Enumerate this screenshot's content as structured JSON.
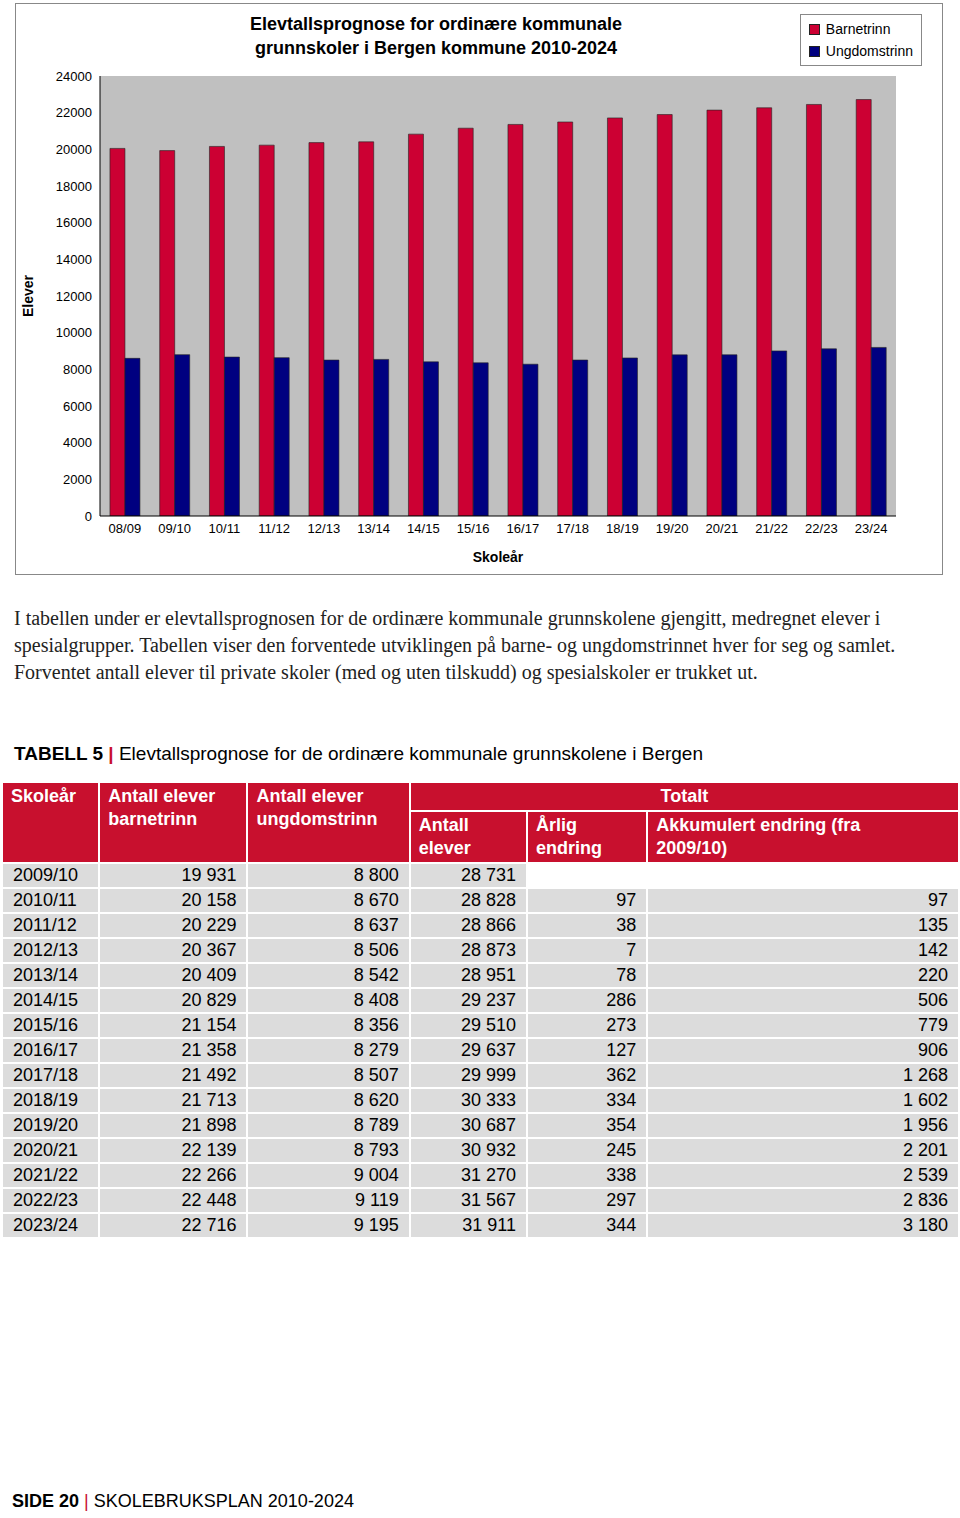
{
  "chart_data": {
    "type": "bar",
    "title": "Elevtallsprognose for ordinære kommunale grunnskoler i Bergen kommune 2010-2024",
    "y_label": "Elever",
    "x_label": "Skoleår",
    "categories": [
      "08/09",
      "09/10",
      "10/11",
      "11/12",
      "12/13",
      "13/14",
      "14/15",
      "15/16",
      "16/17",
      "17/18",
      "18/19",
      "19/20",
      "20/21",
      "21/22",
      "22/23",
      "23/24"
    ],
    "series": [
      {
        "name": "Barnetrinn",
        "color": "#cc0033",
        "values": [
          20050,
          19931,
          20158,
          20229,
          20367,
          20409,
          20829,
          21154,
          21358,
          21492,
          21713,
          21898,
          22139,
          22266,
          22448,
          22716
        ]
      },
      {
        "name": "Ungdomstrinn",
        "color": "#000080",
        "values": [
          8600,
          8800,
          8670,
          8637,
          8506,
          8542,
          8408,
          8356,
          8279,
          8507,
          8620,
          8789,
          8793,
          9004,
          9119,
          9195
        ]
      }
    ],
    "ylim": [
      0,
      24000
    ],
    "yticks": [
      0,
      2000,
      4000,
      6000,
      8000,
      10000,
      12000,
      14000,
      16000,
      18000,
      20000,
      22000,
      24000
    ],
    "grid": false,
    "legend": "upper right"
  },
  "text": "I tabellen under er elevtallsprognosen for de ordinære kommunale grunnskolene gjengitt, medregnet elever i spesialgrupper. Tabellen viser den forventede utviklingen på barne- og ungdomstrinnet hver for seg og samlet. Forventet antall elever til private skoler (med og uten tilskudd) og spesialskoler er trukket ut.",
  "table": {
    "label": "TABELL 5",
    "separator": "|",
    "title": "Elevtallsprognose for de ordinære kommunale grunnskolene i Bergen",
    "header": {
      "top": [
        "Skoleår",
        "Antall elever barnetrinn",
        "Antall elever ungdomstrinn",
        "Totalt"
      ],
      "sub": [
        "Antall elever",
        "Årlig endring",
        "Akkumulert endring (fra 2009/10)"
      ]
    },
    "rows": [
      [
        "2009/10",
        "19 931",
        "8 800",
        "28 731",
        null,
        null
      ],
      [
        "2010/11",
        "20 158",
        "8 670",
        "28 828",
        "97",
        "97"
      ],
      [
        "2011/12",
        "20 229",
        "8 637",
        "28 866",
        "38",
        "135"
      ],
      [
        "2012/13",
        "20 367",
        "8 506",
        "28 873",
        "7",
        "142"
      ],
      [
        "2013/14",
        "20 409",
        "8 542",
        "28 951",
        "78",
        "220"
      ],
      [
        "2014/15",
        "20 829",
        "8 408",
        "29 237",
        "286",
        "506"
      ],
      [
        "2015/16",
        "21 154",
        "8 356",
        "29 510",
        "273",
        "779"
      ],
      [
        "2016/17",
        "21 358",
        "8 279",
        "29 637",
        "127",
        "906"
      ],
      [
        "2017/18",
        "21 492",
        "8 507",
        "29 999",
        "362",
        "1 268"
      ],
      [
        "2018/19",
        "21 713",
        "8 620",
        "30 333",
        "334",
        "1 602"
      ],
      [
        "2019/20",
        "21 898",
        "8 789",
        "30 687",
        "354",
        "1 956"
      ],
      [
        "2020/21",
        "22 139",
        "8 793",
        "30 932",
        "245",
        "2 201"
      ],
      [
        "2021/22",
        "22 266",
        "9 004",
        "31 270",
        "338",
        "2 539"
      ],
      [
        "2022/23",
        "22 448",
        "9 119",
        "31 567",
        "297",
        "2 836"
      ],
      [
        "2023/24",
        "22 716",
        "9 195",
        "31 911",
        "344",
        "3 180"
      ]
    ]
  },
  "footer": {
    "page": "SIDE 20",
    "separator": "|",
    "text": "SKOLEBRUKSPLAN 2010-2024"
  }
}
